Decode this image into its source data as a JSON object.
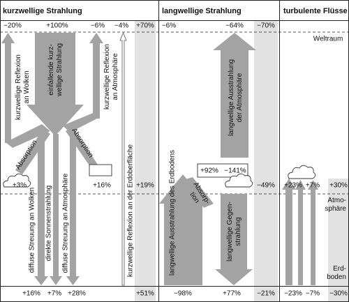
{
  "headers": [
    "kurzwellige Strahlung",
    "langwellige Strahlung",
    "turbulente Flüsse"
  ],
  "top_values": [
    "−20%",
    "+100%",
    "−6%",
    "−4%",
    "+70%",
    "−6%",
    "−64%",
    "−70%"
  ],
  "bottom_values": [
    "+16%",
    "+7%",
    "+28%",
    "+51%",
    "−98%",
    "+77%",
    "−21%",
    "−23%",
    "−7%",
    "−30%"
  ],
  "layers": {
    "space": "Weltraum",
    "atmosphere": [
      "Atmo-",
      "sphäre"
    ],
    "ground": [
      "Erd-",
      "boden"
    ]
  },
  "shortwave": {
    "reflection_clouds": [
      "kurzwellige Reflexion",
      "an Wolken"
    ],
    "incoming": [
      "einfallende kurz-",
      "wellige Strahlung"
    ],
    "reflection_atmosphere": [
      "kurzwellige Reflexion",
      "an Atmosphäre"
    ],
    "absorption_clouds": "Absorption",
    "absorption_atmosphere": "Absorption",
    "cloud_value": "+3%",
    "atmosphere_value": "+16%",
    "total_absorbed": "+19%",
    "diffuse_clouds": "diffuse Streuung an Wolken",
    "direct": "direkte Sonnenstrahlung",
    "diffuse_atmosphere": "diffuse Streuung an Atmosphäre",
    "reflection_surface": "kurzwellige Reflexion an der Erdoberfläche"
  },
  "longwave": {
    "emission_ground": "langwellige Ausstrahlung des Erdbodens",
    "emission_atmosphere": [
      "langwellige Ausstrahlung",
      "der Atmosphäre"
    ],
    "box_in": "+92%",
    "box_out": "−141%",
    "absorption": [
      "Absorp-",
      "tion"
    ],
    "balance": "−49%",
    "back_radiation": [
      "langwellige Gegen-",
      "strahlung"
    ]
  },
  "turbulent": {
    "sensible": "+23%",
    "latent": "+7%",
    "total": "+30%"
  }
}
